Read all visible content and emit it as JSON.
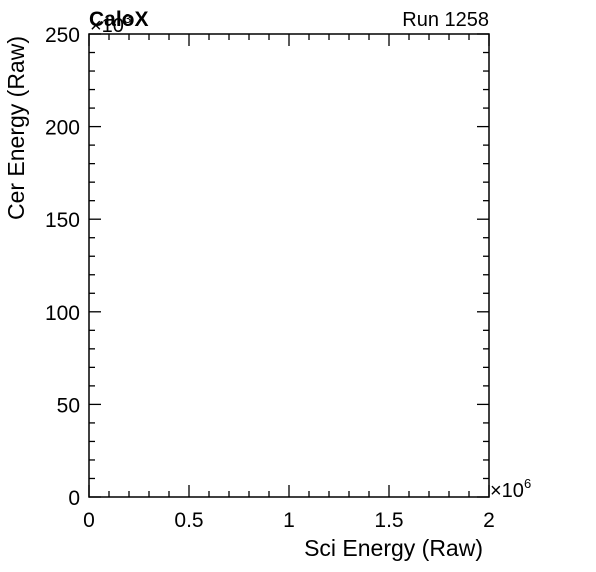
{
  "header": {
    "brand_label": "CaloX",
    "run_label": "Run 1258"
  },
  "chart_data": {
    "type": "heatmap",
    "title": "",
    "xlabel": "Sci Energy (Raw)",
    "ylabel": "Cer Energy (Raw)",
    "xlim": [
      0,
      2000000
    ],
    "ylim": [
      0,
      250000
    ],
    "x_multiplier": {
      "base": "×10",
      "exponent": "6"
    },
    "y_multiplier": {
      "base": "×10",
      "exponent": "3"
    },
    "x_ticks": [
      {
        "value": 0,
        "label": "0"
      },
      {
        "value": 500000,
        "label": "0.5"
      },
      {
        "value": 1000000,
        "label": "1"
      },
      {
        "value": 1500000,
        "label": "1.5"
      },
      {
        "value": 2000000,
        "label": "2"
      }
    ],
    "y_ticks": [
      {
        "value": 0,
        "label": "0"
      },
      {
        "value": 50000,
        "label": "50"
      },
      {
        "value": 100000,
        "label": "100"
      },
      {
        "value": 150000,
        "label": "150"
      },
      {
        "value": 200000,
        "label": "200"
      },
      {
        "value": 250000,
        "label": "250"
      }
    ],
    "x_minor_divisions": 5,
    "y_minor_divisions": 5,
    "grid": false,
    "points": []
  }
}
